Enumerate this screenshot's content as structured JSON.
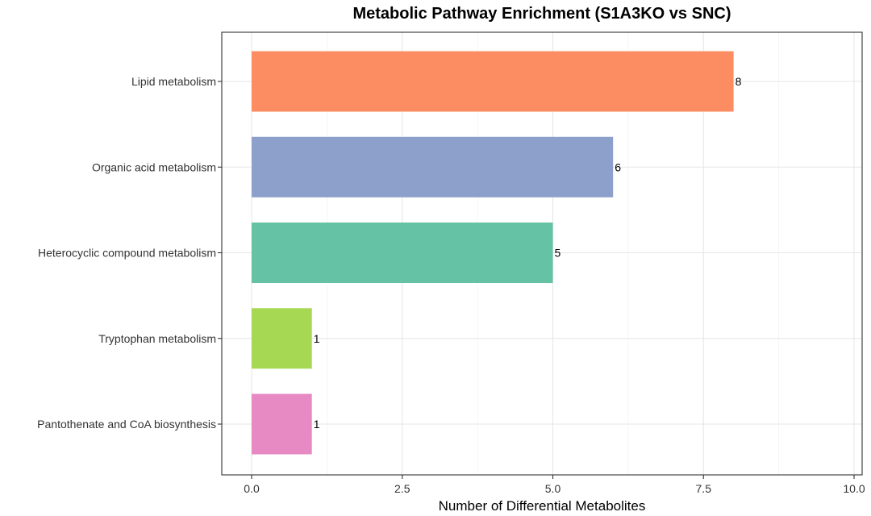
{
  "chart_data": {
    "type": "bar",
    "orientation": "horizontal",
    "title": "Metabolic Pathway Enrichment (S1A3KO vs SNC)",
    "xlabel": "Number of Differential Metabolites",
    "ylabel": "",
    "xlim": [
      0,
      10
    ],
    "xticks": [
      0,
      2.5,
      5,
      7.5,
      10
    ],
    "xtick_labels": [
      "0.0",
      "2.5",
      "5.0",
      "7.5",
      "10.0"
    ],
    "grid": true,
    "legend": "none",
    "categories": [
      "Lipid metabolism",
      "Organic acid metabolism",
      "Heterocyclic compound metabolism",
      "Tryptophan metabolism",
      "Pantothenate and CoA biosynthesis"
    ],
    "values": [
      8,
      6,
      5,
      1,
      1
    ],
    "value_labels": [
      "8",
      "6",
      "5",
      "1",
      "1"
    ],
    "colors": [
      "#FC8D62",
      "#8DA0CB",
      "#66C2A5",
      "#A6D854",
      "#E78AC3"
    ]
  }
}
